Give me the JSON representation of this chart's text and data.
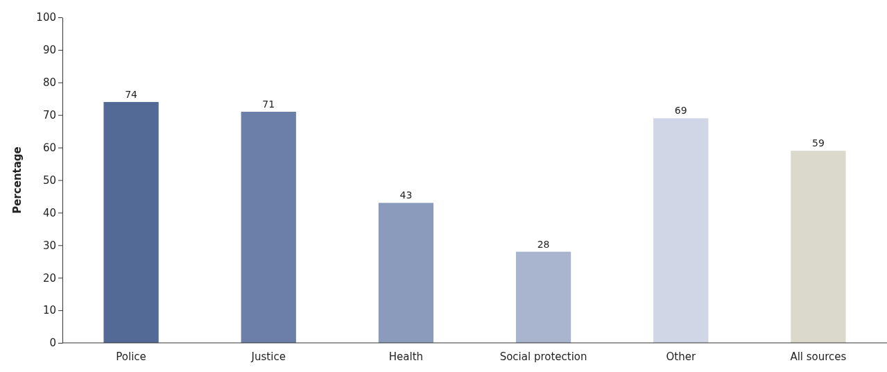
{
  "chart_data": {
    "type": "bar",
    "ylabel": "Percentage",
    "categories": [
      "Police",
      "Justice",
      "Health",
      "Social protection",
      "Other",
      "All sources"
    ],
    "values": [
      74,
      71,
      43,
      28,
      69,
      59
    ],
    "colors": [
      "#536a96",
      "#6b7fa8",
      "#8b9bbb",
      "#a9b4cf",
      "#d0d6e6",
      "#dbd9cc"
    ],
    "ylim": [
      0,
      100
    ],
    "yticks": [
      0,
      10,
      20,
      30,
      40,
      50,
      60,
      70,
      80,
      90,
      100
    ],
    "data_labels": true,
    "grid": false
  }
}
